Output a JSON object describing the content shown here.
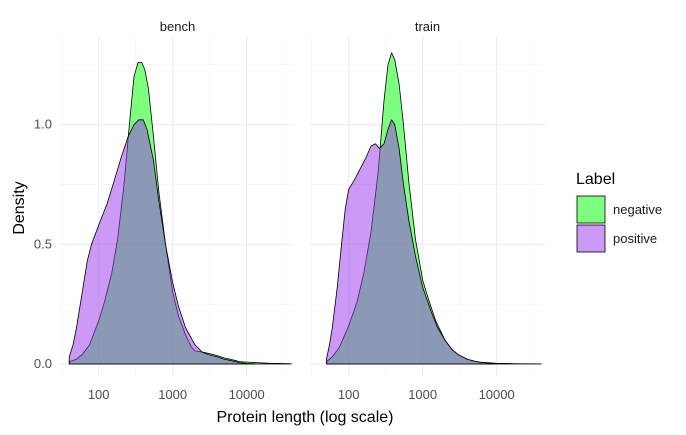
{
  "chart_data": {
    "type": "area",
    "subtype": "density",
    "panels": [
      {
        "strip_label": "bench",
        "series": [
          {
            "name": "negative",
            "color": "#00ff00",
            "points": [
              [
                40,
                0.01
              ],
              [
                50,
                0.02
              ],
              [
                60,
                0.04
              ],
              [
                75,
                0.08
              ],
              [
                100,
                0.18
              ],
              [
                120,
                0.26
              ],
              [
                150,
                0.38
              ],
              [
                180,
                0.52
              ],
              [
                220,
                0.75
              ],
              [
                260,
                1.0
              ],
              [
                300,
                1.2
              ],
              [
                340,
                1.26
              ],
              [
                380,
                1.26
              ],
              [
                420,
                1.23
              ],
              [
                470,
                1.15
              ],
              [
                550,
                0.95
              ],
              [
                650,
                0.72
              ],
              [
                800,
                0.5
              ],
              [
                1000,
                0.3
              ],
              [
                1200,
                0.2
              ],
              [
                1500,
                0.12
              ],
              [
                1800,
                0.07
              ],
              [
                2000,
                0.055
              ],
              [
                2500,
                0.05
              ],
              [
                3000,
                0.045
              ],
              [
                4000,
                0.035
              ],
              [
                5000,
                0.025
              ],
              [
                6000,
                0.02
              ],
              [
                7000,
                0.015
              ],
              [
                8000,
                0.01
              ],
              [
                10000,
                0.008
              ],
              [
                13000,
                0.006
              ],
              [
                15000,
                0.005
              ],
              [
                20000,
                0.003
              ],
              [
                30000,
                0.002
              ],
              [
                40000,
                0.001
              ]
            ]
          },
          {
            "name": "positive",
            "color": "#9933ee",
            "points": [
              [
                40,
                0.03
              ],
              [
                45,
                0.08
              ],
              [
                50,
                0.15
              ],
              [
                60,
                0.3
              ],
              [
                70,
                0.43
              ],
              [
                80,
                0.5
              ],
              [
                100,
                0.58
              ],
              [
                130,
                0.67
              ],
              [
                160,
                0.76
              ],
              [
                200,
                0.86
              ],
              [
                250,
                0.95
              ],
              [
                300,
                1.0
              ],
              [
                350,
                1.02
              ],
              [
                400,
                1.02
              ],
              [
                450,
                0.98
              ],
              [
                550,
                0.85
              ],
              [
                650,
                0.68
              ],
              [
                800,
                0.5
              ],
              [
                1000,
                0.34
              ],
              [
                1200,
                0.24
              ],
              [
                1500,
                0.15
              ],
              [
                2000,
                0.08
              ],
              [
                2500,
                0.05
              ],
              [
                3000,
                0.04
              ],
              [
                4000,
                0.03
              ],
              [
                5000,
                0.02
              ],
              [
                6000,
                0.015
              ],
              [
                7000,
                0.01
              ],
              [
                8000,
                0.006
              ],
              [
                9000,
                0.004
              ],
              [
                10000,
                0.002
              ],
              [
                13000,
                0.001
              ]
            ]
          }
        ]
      },
      {
        "strip_label": "train",
        "series": [
          {
            "name": "negative",
            "color": "#00ff00",
            "points": [
              [
                50,
                0.01
              ],
              [
                60,
                0.03
              ],
              [
                75,
                0.07
              ],
              [
                100,
                0.16
              ],
              [
                130,
                0.26
              ],
              [
                160,
                0.38
              ],
              [
                200,
                0.55
              ],
              [
                250,
                0.8
              ],
              [
                300,
                1.1
              ],
              [
                340,
                1.25
              ],
              [
                380,
                1.3
              ],
              [
                420,
                1.27
              ],
              [
                480,
                1.17
              ],
              [
                550,
                1.0
              ],
              [
                650,
                0.76
              ],
              [
                800,
                0.52
              ],
              [
                1000,
                0.35
              ],
              [
                1200,
                0.27
              ],
              [
                1500,
                0.18
              ],
              [
                2000,
                0.1
              ],
              [
                2500,
                0.06
              ],
              [
                3000,
                0.04
              ],
              [
                4000,
                0.02
              ],
              [
                5000,
                0.012
              ],
              [
                6000,
                0.008
              ],
              [
                8000,
                0.005
              ],
              [
                10000,
                0.003
              ],
              [
                15000,
                0.002
              ],
              [
                20000,
                0.001
              ],
              [
                40000,
                0.0005
              ]
            ]
          },
          {
            "name": "positive",
            "color": "#9933ee",
            "points": [
              [
                50,
                0.02
              ],
              [
                55,
                0.08
              ],
              [
                60,
                0.15
              ],
              [
                70,
                0.32
              ],
              [
                80,
                0.5
              ],
              [
                90,
                0.65
              ],
              [
                100,
                0.73
              ],
              [
                120,
                0.77
              ],
              [
                140,
                0.81
              ],
              [
                170,
                0.86
              ],
              [
                200,
                0.91
              ],
              [
                230,
                0.92
              ],
              [
                260,
                0.9
              ],
              [
                300,
                0.92
              ],
              [
                340,
                0.98
              ],
              [
                380,
                1.02
              ],
              [
                420,
                1.0
              ],
              [
                480,
                0.9
              ],
              [
                550,
                0.75
              ],
              [
                650,
                0.6
              ],
              [
                800,
                0.45
              ],
              [
                1000,
                0.32
              ],
              [
                1300,
                0.22
              ],
              [
                1600,
                0.15
              ],
              [
                2000,
                0.1
              ],
              [
                2500,
                0.06
              ],
              [
                3000,
                0.04
              ],
              [
                4000,
                0.02
              ],
              [
                5000,
                0.012
              ],
              [
                6000,
                0.007
              ],
              [
                8000,
                0.003
              ],
              [
                10000,
                0.001
              ]
            ]
          }
        ]
      }
    ],
    "xlabel": "Protein length (log scale)",
    "ylabel": "Density",
    "x_scale": "log10",
    "xlim": [
      30,
      45000
    ],
    "ylim": [
      -0.05,
      1.37
    ],
    "x_ticks": [
      100,
      1000,
      10000
    ],
    "x_tick_labels": [
      "100",
      "1000",
      "10000"
    ],
    "y_ticks": [
      0,
      0.5,
      1
    ],
    "y_tick_labels": [
      "0.0",
      "0.5",
      "1.0"
    ],
    "grid": true,
    "fill_opacity": 0.5,
    "overlap_color": "#9399b0",
    "outline_color": "#000000",
    "legend": {
      "title": "Label",
      "position": "right",
      "items": [
        {
          "label": "negative",
          "color": "#00ff00"
        },
        {
          "label": "positive",
          "color": "#9933ee"
        }
      ]
    }
  }
}
